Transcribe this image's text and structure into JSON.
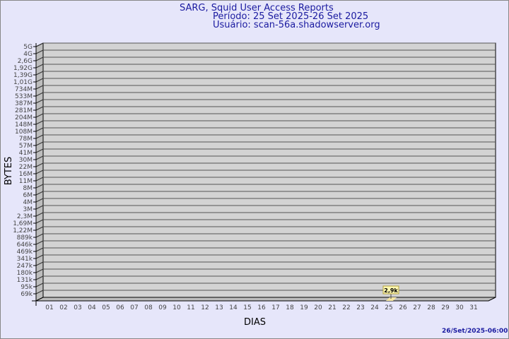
{
  "header": {
    "title": "SARG, Squid User Access Reports",
    "period": "Período: 25 Set 2025-26 Set 2025",
    "user": "Usuário: scan-56a.shadowserver.org"
  },
  "footer": {
    "timestamp": "26/Set/2025-06:00"
  },
  "colors": {
    "title": "#1a1aa0",
    "plot": "#d3d3d3",
    "bar": "#f5e6a0"
  },
  "chart_data": {
    "type": "bar",
    "xlabel": "DIAS",
    "ylabel": "BYTES",
    "y_scale": "log",
    "y_ticks": [
      "5G",
      "4G",
      "2,6G",
      "1,92G",
      "1,39G",
      "1,01G",
      "734M",
      "533M",
      "387M",
      "281M",
      "204M",
      "148M",
      "108M",
      "78M",
      "57M",
      "41M",
      "30M",
      "22M",
      "16M",
      "11M",
      "8M",
      "6M",
      "4M",
      "3M",
      "2,3M",
      "1,69M",
      "1,22M",
      "889k",
      "646k",
      "469k",
      "341k",
      "247k",
      "180k",
      "131k",
      "95k",
      "69k"
    ],
    "categories": [
      "01",
      "02",
      "03",
      "04",
      "05",
      "06",
      "07",
      "08",
      "09",
      "10",
      "11",
      "12",
      "13",
      "14",
      "15",
      "16",
      "17",
      "18",
      "19",
      "20",
      "21",
      "22",
      "23",
      "24",
      "25",
      "26",
      "27",
      "28",
      "29",
      "30",
      "31"
    ],
    "data_labels": {
      "25": "2,9k"
    },
    "values": [
      0,
      0,
      0,
      0,
      0,
      0,
      0,
      0,
      0,
      0,
      0,
      0,
      0,
      0,
      0,
      0,
      0,
      0,
      0,
      0,
      0,
      0,
      0,
      0,
      2900,
      0,
      0,
      0,
      0,
      0,
      0
    ],
    "grid": true
  }
}
